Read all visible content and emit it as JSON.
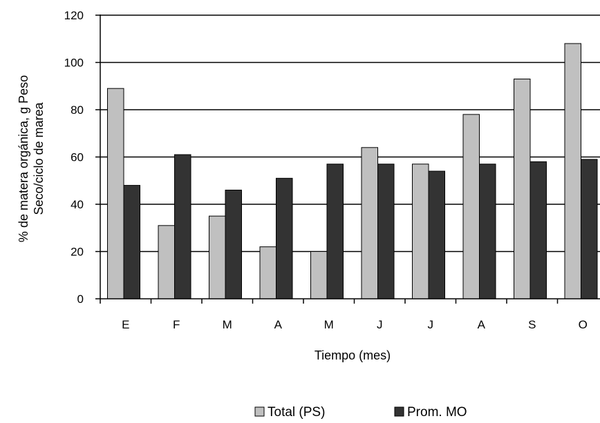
{
  "chart_data": {
    "type": "bar",
    "title": "",
    "xlabel": "Tiempo (mes)",
    "ylabel_lines": [
      "% de matera orgánica, g Peso",
      "Seco/ciclo de marea"
    ],
    "categories": [
      "E",
      "F",
      "M",
      "A",
      "M",
      "J",
      "J",
      "A",
      "S",
      "O"
    ],
    "series": [
      {
        "name": "Total (PS)",
        "color": "#c0c0c0",
        "values": [
          89,
          31,
          35,
          22,
          20,
          64,
          57,
          78,
          93,
          108
        ]
      },
      {
        "name": "Prom. MO",
        "color": "#333333",
        "values": [
          48,
          61,
          46,
          51,
          57,
          57,
          54,
          57,
          58,
          59
        ]
      }
    ],
    "ylim": [
      0,
      120
    ],
    "yticks": [
      "0",
      "20",
      "40",
      "60",
      "80",
      "100",
      "120"
    ],
    "grid": true,
    "legend_position": "bottom"
  }
}
